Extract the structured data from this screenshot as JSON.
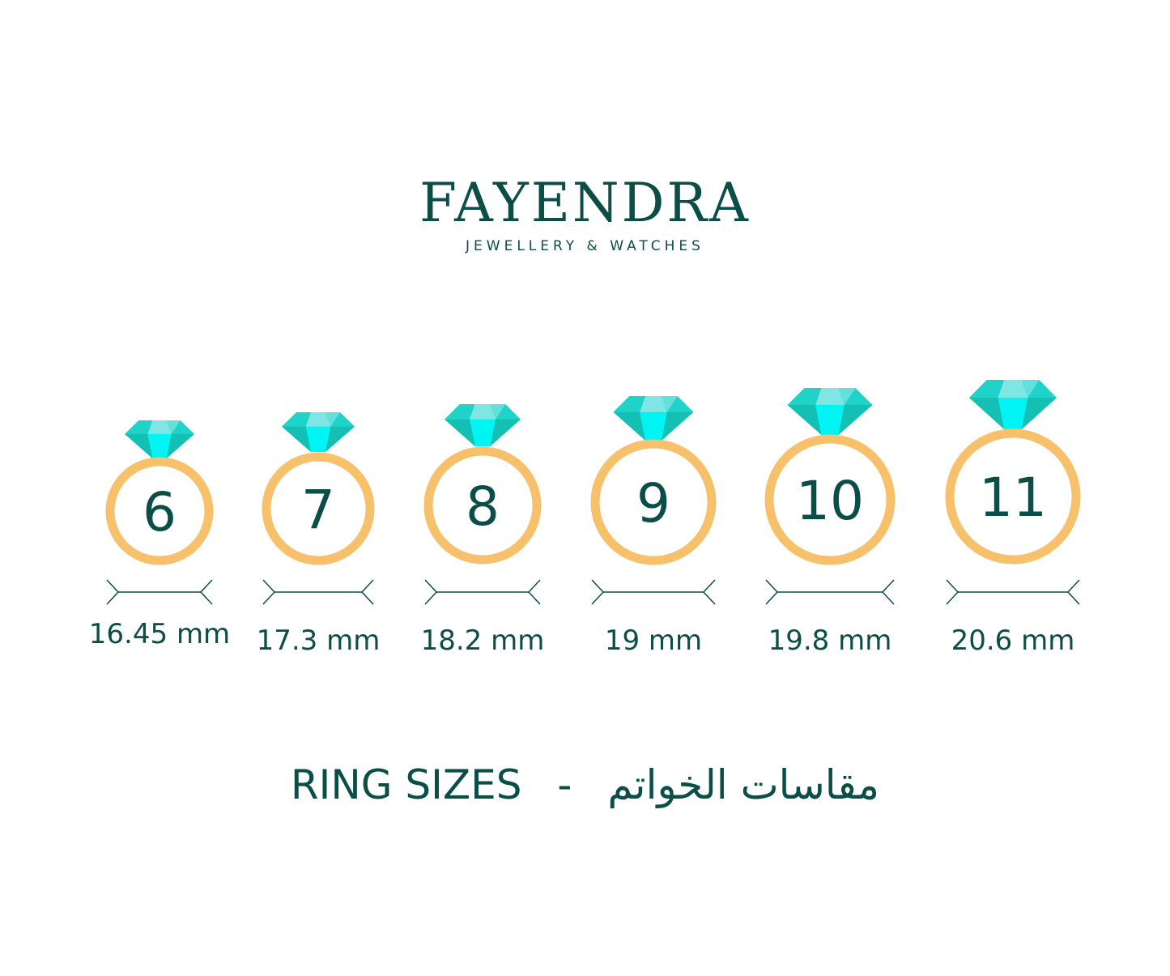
{
  "brand": {
    "name": "FAYENDRA",
    "tagline": "JEWELLERY & WATCHES"
  },
  "rings": [
    {
      "size": "6",
      "diameter": "16.45 mm"
    },
    {
      "size": "7",
      "diameter": "17.3 mm"
    },
    {
      "size": "8",
      "diameter": "18.2 mm"
    },
    {
      "size": "9",
      "diameter": "19 mm"
    },
    {
      "size": "10",
      "diameter": "19.8 mm"
    },
    {
      "size": "11",
      "diameter": "20.6 mm"
    }
  ],
  "title": {
    "english": "RING SIZES",
    "separator": "-",
    "arabic": "مقاسات الخواتم"
  },
  "colors": {
    "text": "#0b4d47",
    "ring": "#f7c06a",
    "gem_dark": "#14bfb4",
    "gem_mid": "#1fd3c8",
    "gem_light": "#00f4f4",
    "gem_pale": "#7fe6e3"
  }
}
